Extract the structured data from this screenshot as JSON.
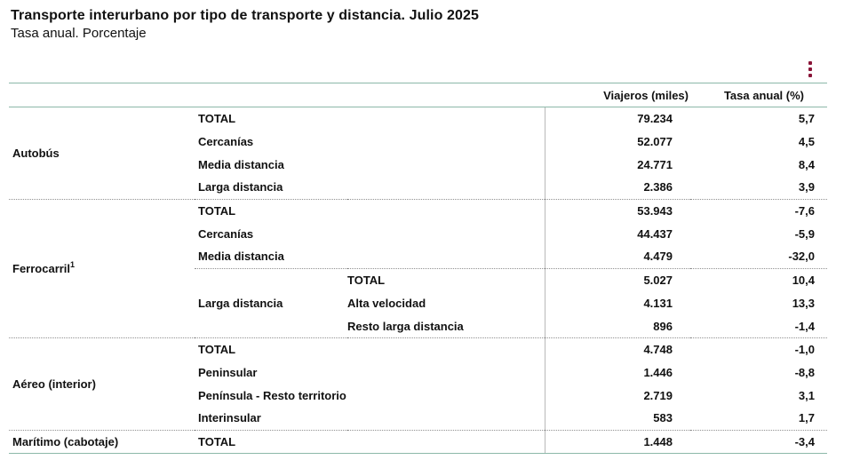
{
  "header": {
    "title": "Transporte interurbano por tipo de transporte y distancia. Julio 2025",
    "subtitle": "Tasa anual. Porcentaje"
  },
  "table": {
    "columns": [
      "Viajeros (miles)",
      "Tasa anual (%)"
    ],
    "groups": [
      {
        "label": "Autobús",
        "rows": [
          {
            "sub": "TOTAL",
            "value": "79.234",
            "rate": "5,7"
          },
          {
            "sub": "Cercanías",
            "value": "52.077",
            "rate": "4,5"
          },
          {
            "sub": "Media distancia",
            "value": "24.771",
            "rate": "8,4"
          },
          {
            "sub": "Larga distancia",
            "value": "2.386",
            "rate": "3,9"
          }
        ]
      },
      {
        "label": "Ferrocarril",
        "footnote": "1",
        "rows": [
          {
            "sub": "TOTAL",
            "value": "53.943",
            "rate": "-7,6"
          },
          {
            "sub": "Cercanías",
            "value": "44.437",
            "rate": "-5,9"
          },
          {
            "sub": "Media distancia",
            "value": "4.479",
            "rate": "-32,0"
          }
        ],
        "long_distance": {
          "label": "Larga distancia",
          "rows": [
            {
              "sub": "TOTAL",
              "value": "5.027",
              "rate": "10,4"
            },
            {
              "sub": "Alta velocidad",
              "value": "4.131",
              "rate": "13,3"
            },
            {
              "sub": "Resto larga distancia",
              "value": "896",
              "rate": "-1,4"
            }
          ]
        }
      },
      {
        "label": "Aéreo (interior)",
        "rows": [
          {
            "sub": "TOTAL",
            "value": "4.748",
            "rate": "-1,0"
          },
          {
            "sub": "Peninsular",
            "value": "1.446",
            "rate": "-8,8"
          },
          {
            "sub": "Península - Resto territorio",
            "value": "2.719",
            "rate": "3,1"
          },
          {
            "sub": "Interinsular",
            "value": "583",
            "rate": "1,7"
          }
        ]
      },
      {
        "label": "Marítimo (cabotaje)",
        "rows": [
          {
            "sub": "TOTAL",
            "value": "1.448",
            "rate": "-3,4"
          }
        ]
      }
    ]
  },
  "toolbar": {
    "menu_icon": "vertical-dots-icon",
    "accent_color": "#8a1538"
  }
}
